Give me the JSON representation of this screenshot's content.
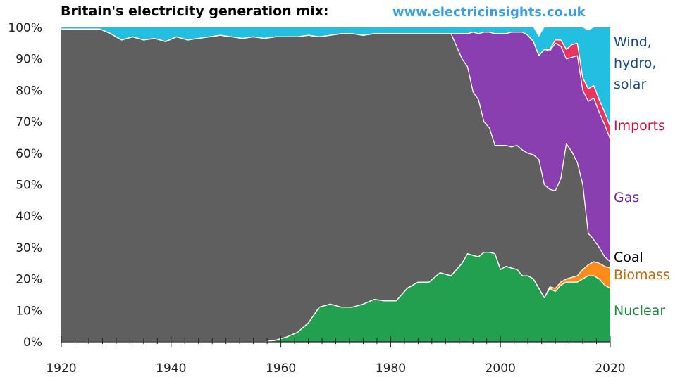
{
  "title": "Britain's electricity generation mix:",
  "source": "www.electricinsights.co.uk",
  "chart_data": {
    "type": "area",
    "stacked": true,
    "xlim": [
      1920,
      2020
    ],
    "ylim": [
      0,
      100
    ],
    "x_ticks": [
      "1920",
      "1940",
      "1960",
      "1980",
      "2000",
      "2020"
    ],
    "y_ticks": [
      "0%",
      "10%",
      "20%",
      "30%",
      "40%",
      "50%",
      "60%",
      "70%",
      "80%",
      "90%",
      "100%"
    ],
    "x": [
      1920,
      1925,
      1927,
      1929,
      1931,
      1933,
      1935,
      1937,
      1939,
      1941,
      1943,
      1945,
      1947,
      1949,
      1951,
      1953,
      1955,
      1957,
      1959,
      1961,
      1963,
      1965,
      1967,
      1969,
      1971,
      1973,
      1975,
      1977,
      1979,
      1981,
      1983,
      1985,
      1987,
      1989,
      1991,
      1993,
      1994,
      1995,
      1996,
      1997,
      1998,
      1999,
      2000,
      2001,
      2002,
      2003,
      2004,
      2005,
      2006,
      2007,
      2008,
      2009,
      2010,
      2011,
      2012,
      2013,
      2014,
      2015,
      2016,
      2017,
      2018,
      2019,
      2020
    ],
    "series": [
      {
        "name": "Nuclear",
        "color": "#22a050",
        "label_color": "#1a8a3c",
        "values": [
          0,
          0,
          0,
          0,
          0,
          0,
          0,
          0,
          0,
          0,
          0,
          0,
          0,
          0,
          0,
          0,
          0,
          0,
          0.5,
          1.5,
          3,
          6,
          11,
          12,
          11,
          11,
          12,
          13.5,
          13,
          13,
          17,
          19,
          19,
          22,
          21,
          25,
          28,
          27.5,
          27,
          28.5,
          28.5,
          28,
          23,
          24,
          23.5,
          23,
          21,
          21,
          20,
          17,
          14,
          17,
          16,
          18,
          19,
          19,
          19,
          20,
          21,
          21,
          20,
          18,
          17
        ]
      },
      {
        "name": "Biomass",
        "color": "#ff8c1a",
        "label_color": "#c06a10",
        "values": [
          0,
          0,
          0,
          0,
          0,
          0,
          0,
          0,
          0,
          0,
          0,
          0,
          0,
          0,
          0,
          0,
          0,
          0,
          0,
          0,
          0,
          0,
          0,
          0,
          0,
          0,
          0,
          0,
          0,
          0,
          0,
          0,
          0,
          0,
          0,
          0,
          0,
          0,
          0,
          0,
          0,
          0,
          0,
          0,
          0,
          0,
          0,
          0,
          0,
          0,
          0,
          0.5,
          1,
          1,
          1,
          1.5,
          2,
          3,
          3.5,
          4.5,
          5,
          6,
          6.5
        ]
      },
      {
        "name": "Coal",
        "color": "#5f5f5f",
        "label_color": "#000000",
        "values": [
          99.5,
          99.5,
          99.5,
          98,
          96,
          97,
          96,
          96.5,
          95.5,
          97,
          96,
          96.5,
          97,
          97.5,
          97,
          96.5,
          97,
          96.5,
          96.5,
          95.5,
          94,
          91.5,
          86,
          85.5,
          87,
          87,
          85.5,
          84.5,
          85,
          85,
          81,
          79,
          79,
          76,
          77,
          65,
          59.5,
          52,
          50,
          41.5,
          39.5,
          34.5,
          39.5,
          38.5,
          38.5,
          39.5,
          40,
          39,
          39.5,
          41,
          36,
          31,
          31,
          33,
          43,
          40,
          36,
          27,
          10,
          7,
          5,
          3,
          2
        ]
      },
      {
        "name": "Gas",
        "color": "#8a3fb0",
        "label_color": "#7a2aa0",
        "values": [
          0,
          0,
          0,
          0,
          0,
          0,
          0,
          0,
          0,
          0,
          0,
          0,
          0,
          0,
          0,
          0,
          0,
          0,
          0,
          0,
          0,
          0,
          0,
          0,
          0,
          0,
          0,
          0,
          0,
          0,
          0,
          0,
          0,
          0,
          0,
          8,
          10.5,
          19,
          21,
          28.5,
          30.5,
          35.5,
          35.5,
          35.5,
          36.5,
          36,
          37.5,
          37.5,
          36,
          33,
          43,
          44,
          47,
          42,
          27,
          30,
          34,
          30,
          42,
          45,
          43,
          42,
          39
        ]
      },
      {
        "name": "Imports",
        "color": "#e8345e",
        "label_color": "#d0103a",
        "values": [
          0,
          0,
          0,
          0,
          0,
          0,
          0,
          0,
          0,
          0,
          0,
          0,
          0,
          0,
          0,
          0,
          0,
          0,
          0,
          0,
          0,
          0,
          0,
          0,
          0,
          0,
          0,
          0,
          0,
          0,
          0,
          0,
          0,
          0,
          0,
          0,
          0,
          0,
          0,
          0,
          0,
          0,
          0,
          0,
          0,
          0,
          0,
          0,
          0,
          0,
          0,
          0.5,
          1,
          2,
          3,
          4,
          4,
          4,
          4,
          4,
          4,
          4,
          4
        ]
      },
      {
        "name": "Wind, hydro, solar",
        "label_lines": [
          "Wind,",
          "hydro,",
          "solar"
        ],
        "color": "#22bfe0",
        "label_color": "#174a8a",
        "values": [
          0.5,
          0.5,
          0.5,
          2,
          4,
          3,
          4,
          3.5,
          4.5,
          3,
          4,
          3.5,
          3,
          2.5,
          3,
          3.5,
          3,
          3.5,
          3,
          3,
          3,
          2.5,
          3,
          2.5,
          2,
          2,
          2.5,
          2,
          2,
          2,
          2,
          2,
          2,
          2,
          2,
          2,
          2,
          1.5,
          2,
          1.5,
          1.5,
          2,
          2,
          2,
          1.5,
          2,
          1.5,
          2.5,
          4.5,
          6,
          7,
          7.5,
          5,
          4,
          7,
          5.5,
          5,
          16,
          18.5,
          18.5,
          23,
          27,
          31.5
        ]
      }
    ]
  }
}
